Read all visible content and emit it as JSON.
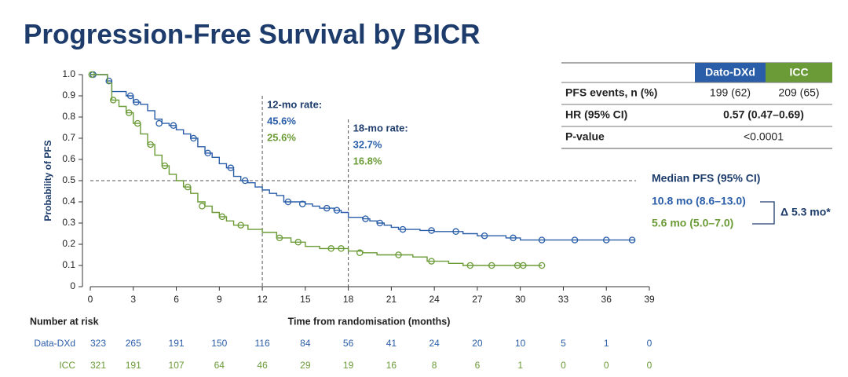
{
  "chart_data": {
    "type": "kaplan-meier",
    "title": "Progression-Free Survival by BICR",
    "xlabel": "Time from randomisation (months)",
    "ylabel": "Probability of PFS",
    "xlim": [
      0,
      39
    ],
    "xticks": [
      0,
      3,
      6,
      9,
      12,
      15,
      18,
      21,
      24,
      27,
      30,
      33,
      36,
      39
    ],
    "ylim": [
      0,
      1
    ],
    "yticks": [
      0,
      0.1,
      0.2,
      0.3,
      0.4,
      0.5,
      0.6,
      0.7,
      0.8,
      0.9,
      {
        "value": 1,
        "label": "1.0"
      }
    ],
    "reference_y": 0.5,
    "series": [
      {
        "name": "Dato-DXd",
        "color": "#2a5ea8",
        "x": [
          0,
          1.2,
          1.5,
          2.5,
          3,
          3.5,
          4,
          4.5,
          5,
          5.5,
          6,
          6.5,
          7,
          7.5,
          8,
          8.5,
          9,
          9.5,
          10,
          10.5,
          11,
          11.5,
          12,
          12.5,
          13,
          13.5,
          15,
          15.5,
          16,
          17,
          17.5,
          18,
          19,
          19.5,
          20,
          20.5,
          21,
          21.5,
          23,
          24,
          26,
          27,
          29,
          30,
          38
        ],
        "values": [
          1,
          0.97,
          0.92,
          0.9,
          0.87,
          0.86,
          0.83,
          0.79,
          0.77,
          0.76,
          0.74,
          0.72,
          0.7,
          0.66,
          0.63,
          0.61,
          0.58,
          0.56,
          0.52,
          0.5,
          0.49,
          0.47,
          0.456,
          0.44,
          0.43,
          0.4,
          0.39,
          0.38,
          0.37,
          0.36,
          0.35,
          0.327,
          0.32,
          0.31,
          0.3,
          0.29,
          0.28,
          0.27,
          0.265,
          0.26,
          0.25,
          0.24,
          0.23,
          0.22,
          0.22
        ],
        "censor_x": [
          0.2,
          1.3,
          2.8,
          3.2,
          4.8,
          5.8,
          7.2,
          8.2,
          9.8,
          10.8,
          13.8,
          14.8,
          16.5,
          17.2,
          19.2,
          20.2,
          21.8,
          23.8,
          25.5,
          27.5,
          29.5,
          31.5,
          33.8,
          36,
          37.8
        ],
        "censor_values": [
          1,
          0.97,
          0.9,
          0.87,
          0.77,
          0.76,
          0.7,
          0.63,
          0.56,
          0.5,
          0.4,
          0.39,
          0.37,
          0.36,
          0.32,
          0.3,
          0.27,
          0.265,
          0.26,
          0.24,
          0.23,
          0.22,
          0.22,
          0.22,
          0.22
        ]
      },
      {
        "name": "ICC",
        "color": "#6b9b37",
        "x": [
          0,
          1.2,
          1.5,
          2,
          2.5,
          3,
          3.5,
          4,
          4.5,
          5,
          5.5,
          6,
          6.5,
          7,
          7.5,
          8,
          8.5,
          9,
          9.5,
          10,
          11,
          12,
          13,
          14,
          15,
          16,
          18,
          19,
          20,
          22.5,
          23.5,
          25,
          26,
          31.5
        ],
        "values": [
          1,
          0.96,
          0.88,
          0.85,
          0.82,
          0.77,
          0.72,
          0.67,
          0.62,
          0.57,
          0.53,
          0.5,
          0.47,
          0.44,
          0.4,
          0.38,
          0.35,
          0.33,
          0.31,
          0.29,
          0.27,
          0.256,
          0.23,
          0.21,
          0.19,
          0.18,
          0.168,
          0.16,
          0.15,
          0.14,
          0.12,
          0.11,
          0.1,
          0.1
        ],
        "censor_x": [
          0.1,
          1.6,
          2.7,
          3.3,
          4.2,
          5.2,
          6.8,
          7.8,
          9.2,
          10.5,
          13.2,
          14.5,
          16.8,
          17.5,
          18.8,
          21.5,
          23.8,
          26.5,
          28,
          29.8,
          30.2,
          31.5
        ],
        "censor_values": [
          1,
          0.88,
          0.82,
          0.77,
          0.67,
          0.57,
          0.47,
          0.38,
          0.33,
          0.29,
          0.23,
          0.21,
          0.18,
          0.18,
          0.16,
          0.15,
          0.12,
          0.1,
          0.1,
          0.1,
          0.1,
          0.1
        ]
      }
    ],
    "annotations": [
      {
        "x": 12,
        "label": "12-mo rate:",
        "values": [
          0.456,
          0.256
        ],
        "value_labels": [
          "45.6%",
          "25.6%"
        ]
      },
      {
        "x": 18,
        "label": "18-mo rate:",
        "values": [
          0.327,
          0.168
        ],
        "value_labels": [
          "32.7%",
          "16.8%"
        ]
      }
    ],
    "median": {
      "title": "Median PFS (95% CI)",
      "rows": [
        "10.8 mo (8.6–13.0)",
        "5.6 mo (5.0–7.0)"
      ],
      "difference": "Δ 5.3 mo*"
    },
    "summary_table": {
      "columns": [
        "Dato-DXd",
        "ICC"
      ],
      "rows": [
        {
          "label": "PFS events, n (%)",
          "cells": [
            "199 (62)",
            "209 (65)"
          ]
        },
        {
          "label": "HR (95% CI)",
          "cells": [
            "0.57 (0.47–0.69)"
          ]
        },
        {
          "label": "P-value",
          "cells": [
            "<0.0001"
          ]
        }
      ]
    },
    "risk_table": {
      "title": "Number at risk",
      "rows": [
        {
          "name": "Data-DXd",
          "values": [
            323,
            265,
            191,
            150,
            116,
            84,
            56,
            41,
            24,
            20,
            10,
            5,
            1,
            0
          ]
        },
        {
          "name": "ICC",
          "values": [
            321,
            191,
            107,
            64,
            46,
            29,
            19,
            16,
            8,
            6,
            1,
            0,
            0,
            0
          ]
        }
      ]
    }
  }
}
